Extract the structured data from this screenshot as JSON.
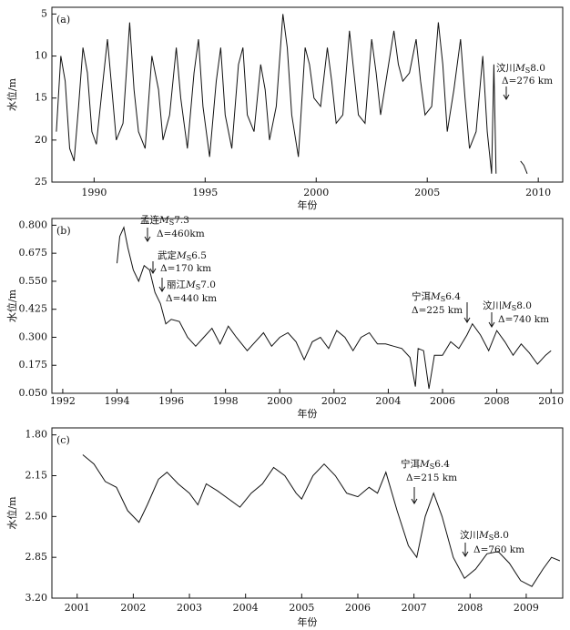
{
  "chart_data": [
    {
      "type": "line",
      "panel_label": "(a)",
      "ylabel": "水位/m",
      "xlabel": "年份",
      "color": "#111111",
      "y_inverted": true,
      "xlim": [
        1988.1,
        2011.1
      ],
      "xticks": [
        1990,
        1995,
        2000,
        2005,
        2010
      ],
      "ylim": [
        4.2,
        25
      ],
      "yticks": [
        5,
        10,
        15,
        20,
        25
      ],
      "x": [
        1988.3,
        1988.5,
        1988.7,
        1988.9,
        1989.1,
        1989.3,
        1989.5,
        1989.7,
        1989.9,
        1990.1,
        1990.4,
        1990.6,
        1990.8,
        1991.0,
        1991.3,
        1991.6,
        1991.8,
        1992.0,
        1992.3,
        1992.6,
        1992.9,
        1993.1,
        1993.4,
        1993.7,
        1993.9,
        1994.2,
        1994.5,
        1994.7,
        1994.9,
        1995.2,
        1995.5,
        1995.7,
        1995.9,
        1996.2,
        1996.5,
        1996.7,
        1996.9,
        1997.2,
        1997.5,
        1997.7,
        1997.9,
        1998.2,
        1998.5,
        1998.7,
        1998.9,
        1999.2,
        1999.5,
        1999.7,
        1999.9,
        2000.2,
        2000.5,
        2000.7,
        2000.9,
        2001.2,
        2001.5,
        2001.7,
        2001.9,
        2002.2,
        2002.5,
        2002.7,
        2002.9,
        2003.2,
        2003.5,
        2003.7,
        2003.9,
        2004.2,
        2004.5,
        2004.7,
        2004.9,
        2005.2,
        2005.5,
        2005.7,
        2005.9,
        2006.2,
        2006.5,
        2006.7,
        2006.9,
        2007.2,
        2007.5,
        2007.7,
        2007.9,
        2008.0,
        2008.1,
        2008.6,
        2009.2,
        2009.35,
        2009.5
      ],
      "values": [
        19,
        10,
        13,
        21,
        22.5,
        16,
        9,
        12,
        19,
        20.5,
        13,
        8,
        14,
        20,
        18,
        6,
        14,
        19,
        21,
        10,
        14,
        20,
        17,
        9,
        15,
        21,
        12,
        8,
        16,
        22,
        13,
        9,
        17,
        21,
        11,
        9,
        17,
        19,
        11,
        14,
        20,
        16,
        5,
        9,
        17,
        22,
        9,
        11,
        15,
        16,
        9,
        13,
        18,
        17,
        7,
        12,
        17,
        18,
        8,
        12,
        17,
        12,
        7,
        11,
        13,
        12,
        8,
        13,
        17,
        16,
        6,
        11,
        19,
        14,
        8,
        15,
        21,
        19,
        10,
        19,
        24,
        11,
        24,
        null,
        22.5,
        23,
        24
      ],
      "annotations": [
        {
          "name": "汶川",
          "symbol": "M",
          "sub": "S",
          "magnitude": "8.0",
          "distance": "Δ=276 km"
        }
      ]
    },
    {
      "type": "line",
      "panel_label": "(b)",
      "ylabel": "水位/m",
      "xlabel": "年份",
      "color": "#111111",
      "y_inverted": false,
      "xlim": [
        1991.6,
        2010.43
      ],
      "xticks": [
        1992,
        1994,
        1996,
        1998,
        2000,
        2002,
        2004,
        2006,
        2008,
        2010
      ],
      "ylim": [
        0.05,
        0.83
      ],
      "yticks": [
        {
          "value": 0.8,
          "label": "0.800"
        },
        {
          "value": 0.675,
          "label": "0.675"
        },
        {
          "value": 0.55,
          "label": "0.550"
        },
        {
          "value": 0.425,
          "label": "0.425"
        },
        {
          "value": 0.3,
          "label": "0.300"
        },
        {
          "value": 0.175,
          "label": "0.175"
        },
        {
          "value": 0.05,
          "label": "0.050"
        }
      ],
      "x": [
        1994.0,
        1994.1,
        1994.25,
        1994.4,
        1994.6,
        1994.8,
        1995.0,
        1995.2,
        1995.4,
        1995.6,
        1995.8,
        1996.0,
        1996.3,
        1996.6,
        1996.9,
        1997.2,
        1997.5,
        1997.8,
        1998.1,
        1998.4,
        1998.8,
        1999.1,
        1999.4,
        1999.7,
        2000.0,
        2000.3,
        2000.6,
        2000.9,
        2001.2,
        2001.5,
        2001.8,
        2002.1,
        2002.4,
        2002.7,
        2003.0,
        2003.3,
        2003.6,
        2003.9,
        2004.2,
        2004.5,
        2004.8,
        2005.0,
        2005.1,
        2005.3,
        2005.5,
        2005.7,
        2006.0,
        2006.3,
        2006.6,
        2006.9,
        2007.1,
        2007.4,
        2007.7,
        2008.0,
        2008.3,
        2008.6,
        2008.9,
        2009.2,
        2009.5,
        2009.8,
        2010.0
      ],
      "values": [
        0.63,
        0.75,
        0.79,
        0.7,
        0.6,
        0.55,
        0.62,
        0.6,
        0.5,
        0.45,
        0.36,
        0.38,
        0.37,
        0.3,
        0.26,
        0.3,
        0.34,
        0.27,
        0.35,
        0.3,
        0.24,
        0.28,
        0.32,
        0.26,
        0.3,
        0.32,
        0.28,
        0.2,
        0.28,
        0.3,
        0.25,
        0.33,
        0.3,
        0.24,
        0.3,
        0.32,
        0.27,
        0.27,
        0.26,
        0.25,
        0.21,
        0.08,
        0.25,
        0.24,
        0.07,
        0.22,
        0.22,
        0.28,
        0.25,
        0.31,
        0.36,
        0.31,
        0.24,
        0.33,
        0.28,
        0.22,
        0.27,
        0.23,
        0.18,
        0.22,
        0.24
      ],
      "annotations": [
        {
          "name": "孟连",
          "symbol": "M",
          "sub": "S",
          "magnitude": "7.3",
          "distance": "Δ=460km"
        },
        {
          "name": "武定",
          "symbol": "M",
          "sub": "S",
          "magnitude": "6.5",
          "distance": "Δ=170 km"
        },
        {
          "name": "丽江",
          "symbol": "M",
          "sub": "S",
          "magnitude": "7.0",
          "distance": "Δ=440 km"
        },
        {
          "name": "宁洱",
          "symbol": "M",
          "sub": "S",
          "magnitude": "6.4",
          "distance": "Δ=225 km"
        },
        {
          "name": "汶川",
          "symbol": "M",
          "sub": "S",
          "magnitude": "8.0",
          "distance": "Δ=740 km"
        }
      ]
    },
    {
      "type": "line",
      "panel_label": "(c)",
      "ylabel": "水位/m",
      "xlabel": "年份",
      "color": "#111111",
      "y_inverted": true,
      "xlim": [
        2000.55,
        2009.65
      ],
      "xticks": [
        2001,
        2002,
        2003,
        2004,
        2005,
        2006,
        2007,
        2008,
        2009
      ],
      "ylim": [
        1.74,
        3.2
      ],
      "yticks": [
        {
          "value": 1.8,
          "label": "1.80"
        },
        2.15,
        {
          "value": 2.5,
          "label": "2.50"
        },
        2.85,
        {
          "value": 3.2,
          "label": "3.20"
        }
      ],
      "x": [
        2001.1,
        2001.3,
        2001.5,
        2001.7,
        2001.9,
        2002.1,
        2002.25,
        2002.45,
        2002.6,
        2002.8,
        2003.0,
        2003.15,
        2003.3,
        2003.5,
        2003.7,
        2003.9,
        2004.1,
        2004.3,
        2004.5,
        2004.7,
        2004.9,
        2005.0,
        2005.2,
        2005.4,
        2005.6,
        2005.8,
        2006.0,
        2006.2,
        2006.35,
        2006.5,
        2006.7,
        2006.9,
        2007.05,
        2007.2,
        2007.35,
        2007.5,
        2007.7,
        2007.9,
        2008.1,
        2008.3,
        2008.5,
        2008.7,
        2008.9,
        2009.1,
        2009.3,
        2009.45,
        2009.6
      ],
      "values": [
        1.97,
        2.05,
        2.2,
        2.25,
        2.45,
        2.55,
        2.4,
        2.18,
        2.12,
        2.22,
        2.3,
        2.4,
        2.22,
        2.28,
        2.35,
        2.42,
        2.3,
        2.22,
        2.08,
        2.15,
        2.3,
        2.35,
        2.15,
        2.05,
        2.15,
        2.3,
        2.33,
        2.25,
        2.3,
        2.12,
        2.45,
        2.75,
        2.85,
        2.5,
        2.3,
        2.5,
        2.85,
        3.03,
        2.95,
        2.82,
        2.8,
        2.9,
        3.05,
        3.1,
        2.95,
        2.85,
        2.88
      ],
      "annotations": [
        {
          "name": "宁洱",
          "symbol": "M",
          "sub": "S",
          "magnitude": "6.4",
          "distance": "Δ=215 km"
        },
        {
          "name": "汶川",
          "symbol": "M",
          "sub": "S",
          "magnitude": "8.0",
          "distance": "Δ=760 km"
        }
      ]
    }
  ]
}
